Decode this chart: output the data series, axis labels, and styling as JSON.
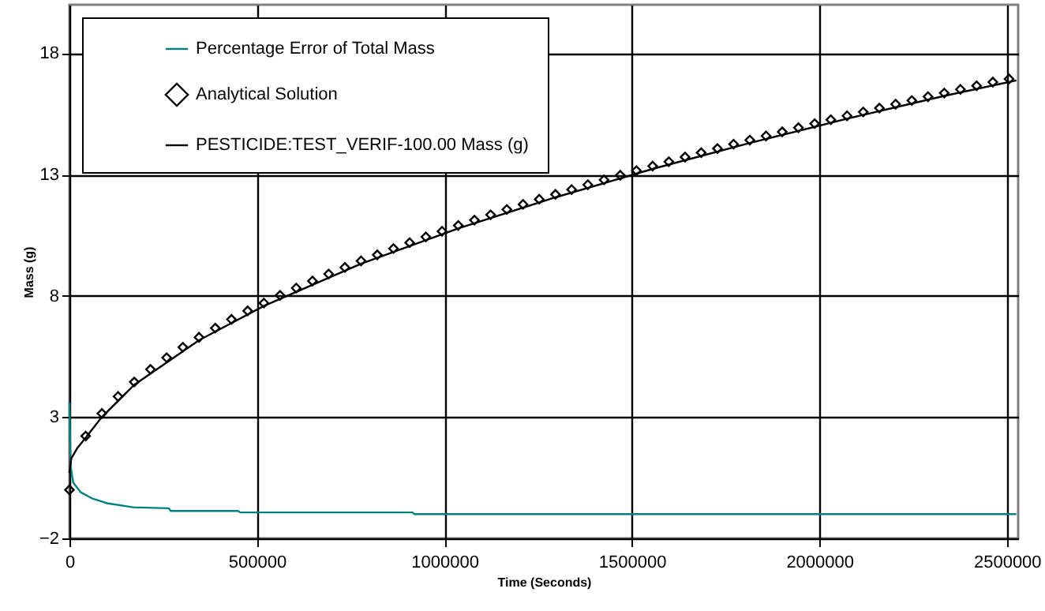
{
  "chart_data": {
    "type": "line",
    "xlabel": "Time (Seconds)",
    "ylabel": "Mass (g)",
    "xlim": [
      0,
      2530000
    ],
    "xticks": [
      0,
      500000,
      1000000,
      1500000,
      2000000,
      2500000
    ],
    "ylim": [
      -2,
      20
    ],
    "yticks": [
      -2,
      3,
      8,
      13,
      18
    ],
    "grid": true,
    "legend": "top left",
    "series": [
      {
        "name": "Percentage Error of Total Mass",
        "color": "#008080",
        "x": [
          0,
          3000,
          10000,
          30000,
          60000,
          100000,
          170000,
          265000,
          270000,
          450000,
          455000,
          915000,
          920000,
          2525000
        ],
        "values": [
          3.6,
          1.0,
          0.3,
          -0.1,
          -0.35,
          -0.55,
          -0.72,
          -0.76,
          -0.87,
          -0.87,
          -0.93,
          -0.93,
          -1.0,
          -1.0
        ]
      },
      {
        "name": "Analytical Solution",
        "type": "scatter",
        "marker": "diamond",
        "color": "#000000",
        "x": [
          0,
          43200,
          86400,
          129600,
          172800,
          216000,
          259200,
          302400,
          345600,
          388800,
          432000,
          475200,
          518400,
          561600,
          604800,
          648000,
          691200,
          734400,
          777600,
          820800,
          864000,
          907200,
          950400,
          993600,
          1036800,
          1080000,
          1123200,
          1166400,
          1209600,
          1252800,
          1296000,
          1339200,
          1382400,
          1425600,
          1468800,
          1512000,
          1555200,
          1598400,
          1641600,
          1684800,
          1728000,
          1771200,
          1814400,
          1857600,
          1900800,
          1944000,
          1987200,
          2030400,
          2073600,
          2116800,
          2160000,
          2203200,
          2246400,
          2289600,
          2332800,
          2376000,
          2419200,
          2462400,
          2505600
        ],
        "values": [
          0,
          2.22,
          3.15,
          3.85,
          4.45,
          4.97,
          5.45,
          5.88,
          6.29,
          6.67,
          7.03,
          7.38,
          7.7,
          8.02,
          8.32,
          8.61,
          8.9,
          9.17,
          9.44,
          9.69,
          9.95,
          10.19,
          10.43,
          10.66,
          10.9,
          11.12,
          11.34,
          11.56,
          11.77,
          11.98,
          12.18,
          12.38,
          12.58,
          12.78,
          12.97,
          13.16,
          13.35,
          13.53,
          13.72,
          13.9,
          14.07,
          14.25,
          14.42,
          14.59,
          14.76,
          14.93,
          15.1,
          15.26,
          15.42,
          15.58,
          15.74,
          15.9,
          16.05,
          16.21,
          16.36,
          16.51,
          16.66,
          16.81,
          16.94
        ]
      },
      {
        "name": "PESTICIDE:TEST_VERIF-100.00 Mass (g)",
        "color": "#000000",
        "x": [
          0,
          5000,
          20000,
          43200,
          86400,
          172800,
          345600,
          518400,
          777600,
          1036800,
          1296000,
          1555200,
          1814400,
          2073600,
          2332800,
          2525000
        ],
        "values": [
          0.7,
          1.3,
          1.7,
          2.15,
          3.0,
          4.33,
          6.17,
          7.58,
          9.32,
          10.78,
          12.06,
          13.23,
          14.3,
          15.3,
          16.24,
          16.88
        ]
      }
    ]
  }
}
